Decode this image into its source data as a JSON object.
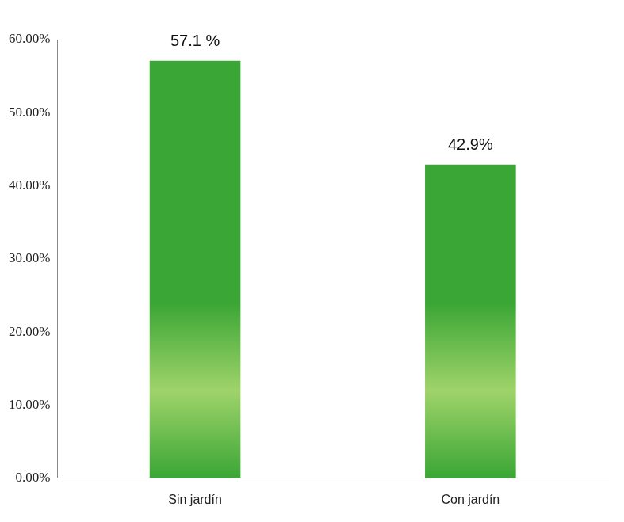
{
  "chart_data": {
    "type": "bar",
    "categories": [
      "Sin jardín",
      "Con jardín"
    ],
    "values": [
      57.1,
      42.9
    ],
    "value_labels": [
      "57.1 %",
      "42.9%"
    ],
    "data_labels": true,
    "color": "#3aa635",
    "ylim": [
      0,
      60
    ],
    "yticks": [
      {
        "value": 0,
        "label": "0.00%"
      },
      {
        "value": 10,
        "label": "10.00%"
      },
      {
        "value": 20,
        "label": "20.00%"
      },
      {
        "value": 30,
        "label": "30.00%"
      },
      {
        "value": 40,
        "label": "40.00%"
      },
      {
        "value": 50,
        "label": "50.00%"
      },
      {
        "value": 60,
        "label": "60.00%"
      }
    ],
    "grid": false
  }
}
